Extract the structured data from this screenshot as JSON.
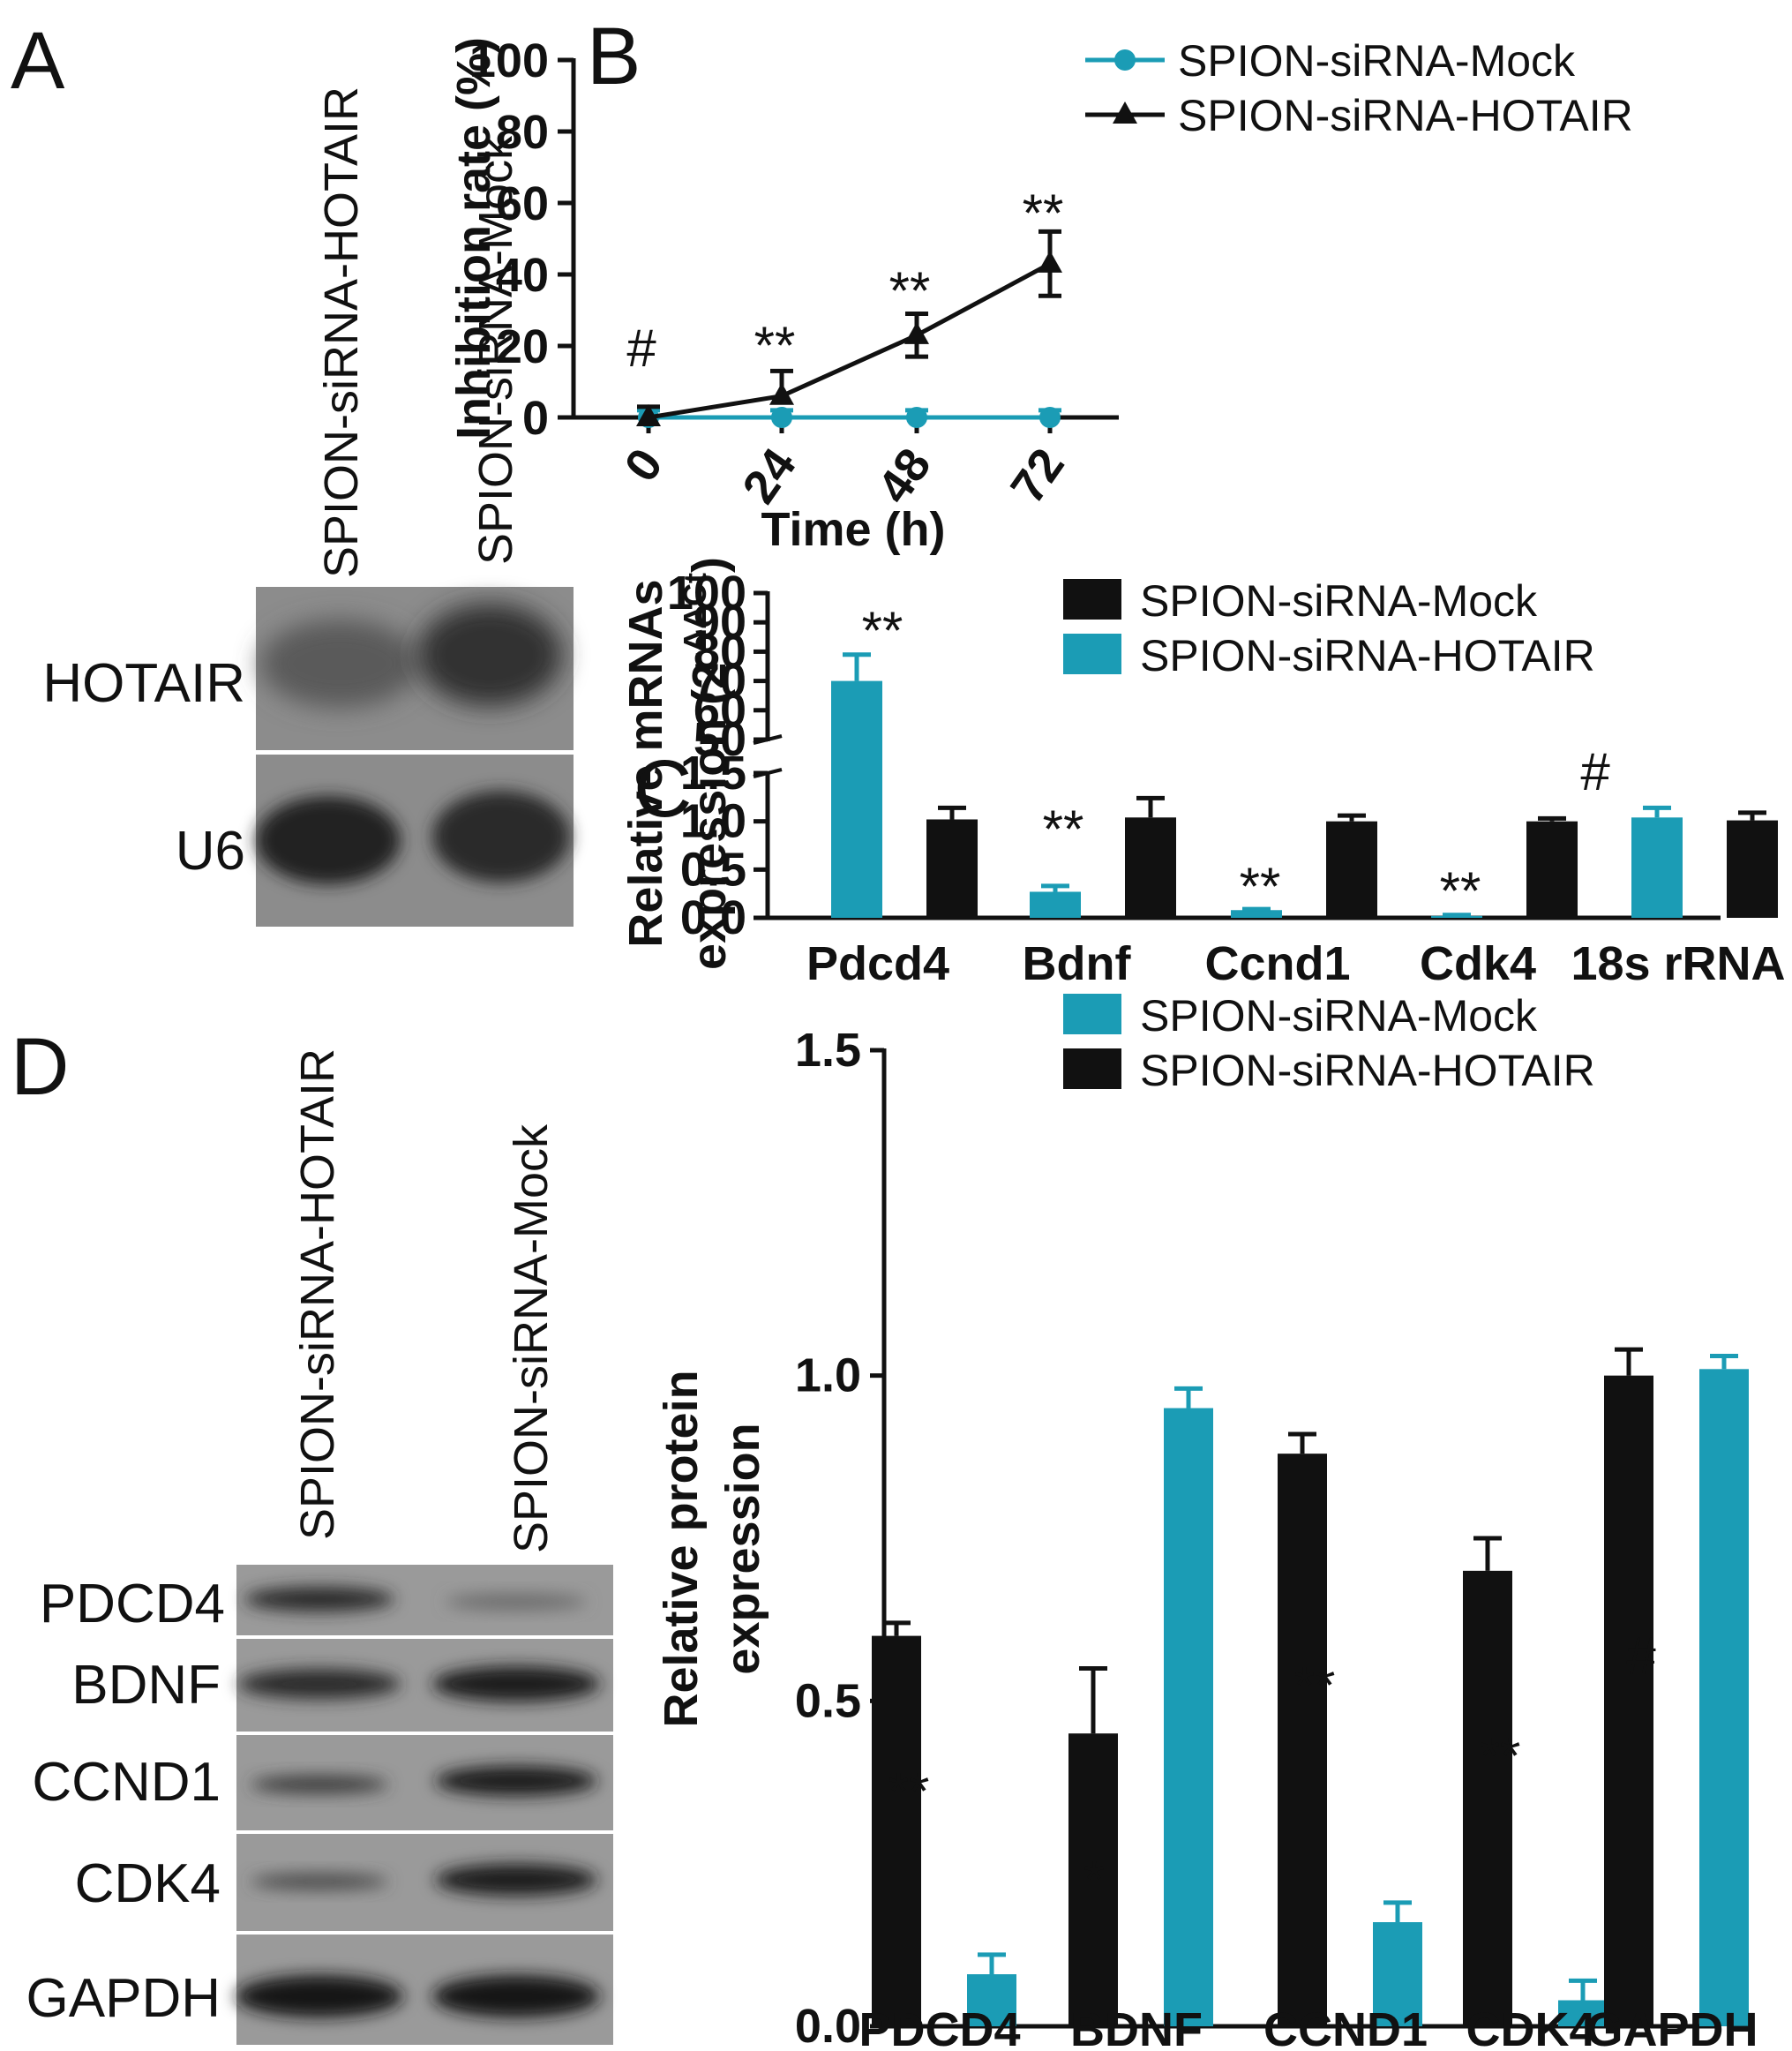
{
  "colors": {
    "teal": "#1b9cb5",
    "black": "#111111"
  },
  "panel_labels": {
    "a": "A",
    "b": "B",
    "c": "C",
    "d": "D"
  },
  "blot_a": {
    "lanes": [
      "SPION-siRNA-HOTAIR",
      "SPION-siRNA-Mock"
    ],
    "rows": [
      "HOTAIR",
      "U6"
    ]
  },
  "blot_d": {
    "lanes": [
      "SPION-siRNA-HOTAIR",
      "SPION-siRNA-Mock"
    ],
    "rows": [
      "PDCD4",
      "BDNF",
      "CCND1",
      "CDK4",
      "GAPDH"
    ]
  },
  "chart_data": [
    {
      "panel": "B",
      "type": "line",
      "xlabel": "Time (h)",
      "ylabel": "Inhibition rate (%)",
      "x": [
        0,
        24,
        48,
        72
      ],
      "x_tick_labels": [
        "0",
        "24",
        "48",
        "72"
      ],
      "y_ticks": [
        "0",
        "20",
        "40",
        "60",
        "80",
        "100"
      ],
      "ylim": [
        0,
        100
      ],
      "legend_position": "top-right",
      "series": [
        {
          "name": "SPION-siRNA-Mock",
          "color": "#1b9cb5",
          "marker": "circle",
          "values": [
            0,
            0,
            0,
            0
          ],
          "errors": [
            2,
            2,
            2,
            2
          ]
        },
        {
          "name": "SPION-siRNA-HOTAIR",
          "color": "#111111",
          "marker": "triangle",
          "values": [
            0,
            6,
            23,
            43
          ],
          "errors": [
            3,
            7,
            6,
            9
          ]
        }
      ],
      "annotations": [
        "#",
        "**",
        "**",
        "**"
      ]
    },
    {
      "panel": "C",
      "type": "bar",
      "ylabel_line1": "Relative mRNAs",
      "ylabel_line2": "expression (2",
      "ylabel_sup": "-ΔΔCt",
      "ylabel_close": ")",
      "categories": [
        "Pdcd4",
        "Bdnf",
        "Ccnd1",
        "Cdk4",
        "18s rRNA"
      ],
      "y_ticks_lower": [
        "0.0",
        "0.5",
        "1.0",
        "1.5"
      ],
      "y_ticks_upper": [
        "50",
        "60",
        "70",
        "80",
        "90",
        "100"
      ],
      "axis_break": [
        1.5,
        50
      ],
      "legend_position": "top-right",
      "legend": [
        {
          "name": "SPION-siRNA-Mock",
          "color": "#111111"
        },
        {
          "name": "SPION-siRNA-HOTAIR",
          "color": "#1b9cb5"
        }
      ],
      "series": [
        {
          "name": "SPION-siRNA-HOTAIR",
          "color": "#1b9cb5",
          "values": [
            70,
            0.27,
            0.08,
            0.02,
            1.04
          ],
          "errors": [
            9,
            0.06,
            0.01,
            0.01,
            0.1
          ]
        },
        {
          "name": "SPION-siRNA-Mock",
          "color": "#111111",
          "values": [
            1.02,
            1.04,
            1.0,
            1.0,
            1.01
          ],
          "errors": [
            0.12,
            0.2,
            0.06,
            0.03,
            0.08
          ]
        }
      ],
      "annotations": [
        "**",
        "**",
        "**",
        "**",
        "#"
      ]
    },
    {
      "panel": "D",
      "type": "bar",
      "ylabel_line1": "Relative protein",
      "ylabel_line2": "expression",
      "categories": [
        "PDCD4",
        "BDNF",
        "CCND1",
        "CDK4",
        "GAPDH"
      ],
      "y_ticks": [
        "0.0",
        "0.5",
        "1.0",
        "1.5"
      ],
      "ylim": [
        0,
        1.5
      ],
      "legend_position": "top-right",
      "legend": [
        {
          "name": "SPION-siRNA-Mock",
          "color": "#1b9cb5"
        },
        {
          "name": "SPION-siRNA-HOTAIR",
          "color": "#111111"
        }
      ],
      "series": [
        {
          "name": "SPION-siRNA-HOTAIR",
          "color": "#111111",
          "values": [
            0.6,
            0.45,
            0.88,
            0.7,
            1.0
          ],
          "errors": [
            0.02,
            0.1,
            0.03,
            0.05,
            0.04
          ]
        },
        {
          "name": "SPION-siRNA-Mock",
          "color": "#1b9cb5",
          "values": [
            0.08,
            0.95,
            0.16,
            0.04,
            1.01
          ],
          "errors": [
            0.03,
            0.03,
            0.03,
            0.03,
            0.02
          ]
        }
      ],
      "annotations": [
        "**",
        "*",
        "**",
        "**",
        "#"
      ]
    }
  ]
}
